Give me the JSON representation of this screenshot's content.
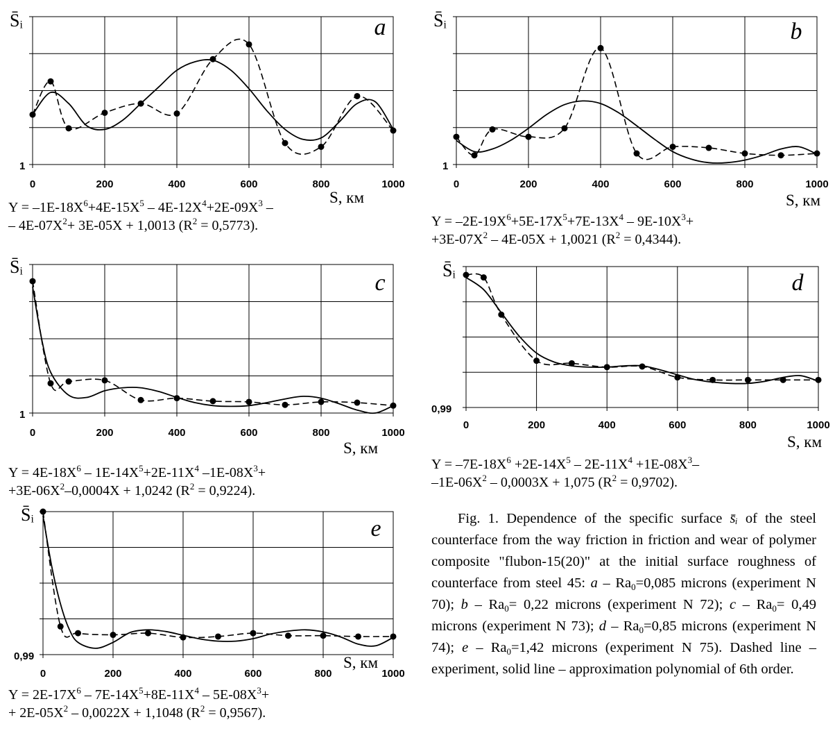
{
  "colors": {
    "line": "#000000",
    "grid": "#000000",
    "marker": "#000000"
  },
  "chart_data": [
    {
      "type": "line",
      "panel_label": "a",
      "ylabel": "S̄ᵢ",
      "xlabel": "S, км",
      "x_ticks": [
        "0",
        "200",
        "400",
        "600",
        "800",
        "1000"
      ],
      "y_tick_label": "1",
      "y_tick_value": 1,
      "xlim": [
        0,
        1000
      ],
      "ylim": [
        1.0,
        1.04
      ],
      "grid": true,
      "series": [
        {
          "kind": "experiment",
          "x": [
            0,
            50,
            100,
            200,
            300,
            400,
            500,
            600,
            700,
            800,
            900,
            1000
          ],
          "y": [
            1.0135,
            1.0225,
            1.0098,
            1.014,
            1.0165,
            1.0138,
            1.0285,
            1.0325,
            1.0058,
            1.0048,
            1.0185,
            1.0092
          ]
        },
        {
          "kind": "approximation",
          "x": [
            0,
            50,
            100,
            150,
            200,
            250,
            300,
            350,
            400,
            450,
            500,
            550,
            600,
            650,
            700,
            750,
            800,
            850,
            900,
            950,
            1000
          ],
          "y": [
            1.0135,
            1.0195,
            1.0165,
            1.0105,
            1.0095,
            1.012,
            1.0165,
            1.021,
            1.0255,
            1.0278,
            1.0282,
            1.0255,
            1.0205,
            1.0145,
            1.0095,
            1.0068,
            1.0072,
            1.0115,
            1.0165,
            1.017,
            1.0095
          ]
        }
      ],
      "equation": {
        "line1": [
          "Y = –1E-18X",
          "6",
          "+4E-15X",
          "5",
          " – 4E-12X",
          "4",
          "+2E-09X",
          "3",
          " –"
        ],
        "line2": [
          "– 4E-07X",
          "2",
          "+ 3E-05X + 1,0013 (R",
          "2",
          " = 0,5773)."
        ]
      }
    },
    {
      "type": "line",
      "panel_label": "b",
      "ylabel": "S̄ᵢ",
      "xlabel": "S, км",
      "x_ticks": [
        "0",
        "200",
        "400",
        "600",
        "800",
        "1000"
      ],
      "y_tick_label": "1",
      "y_tick_value": 1,
      "xlim": [
        0,
        1000
      ],
      "ylim": [
        1.0,
        1.04
      ],
      "grid": true,
      "series": [
        {
          "kind": "experiment",
          "x": [
            0,
            50,
            100,
            200,
            300,
            400,
            500,
            600,
            700,
            800,
            900,
            1000
          ],
          "y": [
            1.0075,
            1.0025,
            1.0095,
            1.0075,
            1.0098,
            1.0315,
            1.003,
            1.0048,
            1.0045,
            1.003,
            1.0025,
            1.003
          ]
        },
        {
          "kind": "approximation",
          "x": [
            0,
            50,
            100,
            150,
            200,
            250,
            300,
            350,
            400,
            450,
            500,
            550,
            600,
            650,
            700,
            750,
            800,
            850,
            900,
            950,
            1000
          ],
          "y": [
            1.0065,
            1.0035,
            1.0042,
            1.0065,
            1.0098,
            1.0135,
            1.0162,
            1.0172,
            1.0165,
            1.014,
            1.0105,
            1.0068,
            1.0035,
            1.0015,
            1.0005,
            1.0005,
            1.0012,
            1.0025,
            1.0042,
            1.0048,
            1.0028
          ]
        }
      ],
      "equation": {
        "line1": [
          "Y = –2E-19X",
          "6",
          "+5E-17X",
          "5",
          "+7E-13X",
          "4",
          " – 9E-10X",
          "3",
          "+"
        ],
        "line2": [
          "+3E-07X",
          "2",
          " – 4E-05X + 1,0021 (R",
          "2",
          " = 0,4344)."
        ]
      }
    },
    {
      "type": "line",
      "panel_label": "c",
      "ylabel": "S̄ᵢ",
      "xlabel": "S, км",
      "x_ticks": [
        "0",
        "200",
        "400",
        "600",
        "800",
        "1000"
      ],
      "y_tick_label": "1",
      "y_tick_value": 1,
      "xlim": [
        0,
        1000
      ],
      "ylim": [
        1.0,
        1.04
      ],
      "grid": true,
      "series": [
        {
          "kind": "experiment",
          "x": [
            0,
            50,
            100,
            200,
            300,
            400,
            500,
            600,
            700,
            800,
            900,
            1000
          ],
          "y": [
            1.0355,
            1.008,
            1.0085,
            1.0088,
            1.0035,
            1.004,
            1.0032,
            1.003,
            1.0022,
            1.003,
            1.0028,
            1.002
          ]
        },
        {
          "kind": "approximation",
          "x": [
            0,
            25,
            50,
            100,
            150,
            200,
            250,
            300,
            350,
            400,
            450,
            500,
            550,
            600,
            650,
            700,
            750,
            800,
            850,
            900,
            950,
            1000
          ],
          "y": [
            1.034,
            1.02,
            1.011,
            1.0048,
            1.0042,
            1.006,
            1.0068,
            1.0068,
            1.0058,
            1.0042,
            1.0028,
            1.002,
            1.0018,
            1.002,
            1.0028,
            1.0038,
            1.0045,
            1.004,
            1.0025,
            1.0008,
            1.0,
            1.002
          ]
        }
      ],
      "equation": {
        "line1": [
          "Y = 4E-18X",
          "6",
          " – 1E-14X",
          "5",
          "+2E-11X",
          "4",
          " –1E-08X",
          "3",
          "+"
        ],
        "line2": [
          "+3E-06X",
          "2",
          "–0,0004X + 1,0242 (R",
          "2",
          " = 0,9224)."
        ]
      }
    },
    {
      "type": "line",
      "panel_label": "d",
      "ylabel": "S̄ᵢ",
      "xlabel": "S, км",
      "x_ticks": [
        "0",
        "200",
        "400",
        "600",
        "800",
        "1000"
      ],
      "y_tick_label": "0,99",
      "y_tick_value": 0.99,
      "xlim": [
        0,
        1000
      ],
      "ylim": [
        0.99,
        1.1
      ],
      "grid": true,
      "series": [
        {
          "kind": "experiment",
          "x": [
            0,
            50,
            100,
            200,
            300,
            400,
            500,
            600,
            700,
            800,
            900,
            1000
          ],
          "y": [
            1.0935,
            1.0915,
            1.0625,
            1.0265,
            1.0245,
            1.0215,
            1.022,
            1.0135,
            1.0115,
            1.0115,
            1.0115,
            1.0115
          ]
        },
        {
          "kind": "approximation",
          "x": [
            0,
            50,
            100,
            150,
            200,
            250,
            300,
            350,
            400,
            450,
            500,
            550,
            600,
            650,
            700,
            750,
            800,
            850,
            900,
            950,
            1000
          ],
          "y": [
            1.0915,
            1.082,
            1.064,
            1.046,
            1.0325,
            1.0255,
            1.0225,
            1.0215,
            1.0215,
            1.0225,
            1.0225,
            1.0195,
            1.0155,
            1.0118,
            1.0098,
            1.0088,
            1.0088,
            1.0105,
            1.0135,
            1.0148,
            1.0105
          ]
        }
      ],
      "equation": {
        "line1": [
          "Y = –7E-18X",
          "6",
          " +2E-14X",
          "5",
          " – 2E-11X",
          "4",
          " +1E-08X",
          "3",
          "–"
        ],
        "line2": [
          "–1E-06X",
          "2",
          " – 0,0003X + 1,075 (R",
          "2",
          " = 0,9702)."
        ]
      }
    },
    {
      "type": "line",
      "panel_label": "e",
      "ylabel": "S̄ᵢ",
      "xlabel": "S, км",
      "x_ticks": [
        "0",
        "200",
        "400",
        "600",
        "800",
        "1000"
      ],
      "y_tick_label": "0,99",
      "y_tick_value": 0.99,
      "xlim": [
        0,
        1000
      ],
      "ylim": [
        0.99,
        1.16
      ],
      "grid": true,
      "series": [
        {
          "kind": "experiment",
          "x": [
            0,
            50,
            100,
            200,
            300,
            400,
            500,
            600,
            700,
            800,
            900,
            1000
          ],
          "y": [
            1.16,
            1.0235,
            1.0155,
            1.0135,
            1.0155,
            1.0105,
            1.0115,
            1.0155,
            1.0125,
            1.0125,
            1.0115,
            1.0115
          ]
        },
        {
          "kind": "approximation",
          "x": [
            0,
            25,
            50,
            75,
            100,
            150,
            200,
            250,
            300,
            350,
            400,
            450,
            500,
            550,
            600,
            650,
            700,
            750,
            800,
            850,
            900,
            950,
            1000
          ],
          "y": [
            1.155,
            1.095,
            1.05,
            1.02,
            1.0045,
            0.9975,
            1.0045,
            1.0165,
            1.0195,
            1.0175,
            1.013,
            1.0085,
            1.006,
            1.006,
            1.009,
            1.0145,
            1.018,
            1.0195,
            1.017,
            1.011,
            1.0025,
            1.0005,
            1.0105
          ]
        }
      ],
      "equation": {
        "line1": [
          "Y = 2E-17X",
          "6",
          " – 7E-14X",
          "5",
          "+8E-11X",
          "4",
          " – 5E-08X",
          "3",
          "+"
        ],
        "line2": [
          "+ 2E-05X",
          "2",
          " – 0,0022X + 1,1048 (R",
          "2",
          " = 0,9567)."
        ]
      }
    }
  ],
  "caption": {
    "p1": "Fig. 1. Dependence of the specific surface ",
    "p2": " of the steel counterface from the way friction in friction and wear of polymer composite \"flubon-15(20)\" at the initial surface roughness of counterface from steel 45: ",
    "a_label": "a",
    "a_text": " – Ra",
    "a_val": "=0,085 microns (experiment N 70); ",
    "b_label": "b",
    "b_text": " – Ra",
    "b_val": "= 0,22 microns (experiment N 72); ",
    "c_label": "c",
    "c_text": " – Ra",
    "c_val": "= 0,49 microns (experiment N 73); ",
    "d_label": "d",
    "d_text": " – Ra",
    "d_val": "=0,85 microns (experiment N 74); ",
    "e_label": "e",
    "e_text": " – Ra",
    "e_val": "=1,42 microns (experiment N 75). Dashed line – experiment, solid line – approximation polynomial of 6th order.",
    "sub0": "0",
    "symbol": "s̄ᵢ"
  }
}
